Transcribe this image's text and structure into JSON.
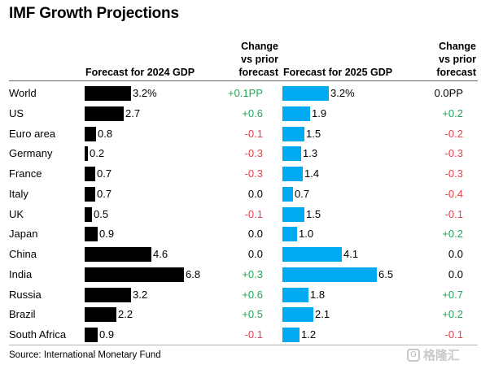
{
  "title": "IMF Growth Projections",
  "headers": {
    "forecast_2024": "Forecast for 2024 GDP",
    "change_2024": [
      "Change",
      "vs prior",
      "forecast"
    ],
    "forecast_2025": "Forecast for 2025 GDP",
    "change_2025": [
      "Change",
      "vs prior",
      "forecast"
    ]
  },
  "source": "Source: International Monetary Fund",
  "watermark": {
    "logo_text": "G",
    "text": "格隆汇"
  },
  "colors": {
    "bar_2024": "#000000",
    "bar_2025": "#00aaf0",
    "positive": "#1fa855",
    "negative": "#e8414a",
    "neutral": "#000000"
  },
  "chart_data": {
    "type": "bar",
    "orientation": "horizontal",
    "categories": [
      "World",
      "US",
      "Euro area",
      "Germany",
      "France",
      "Italy",
      "UK",
      "Japan",
      "China",
      "India",
      "Russia",
      "Brazil",
      "South Africa"
    ],
    "series": [
      {
        "name": "Forecast for 2024 GDP",
        "values": [
          3.2,
          2.7,
          0.8,
          0.2,
          0.7,
          0.7,
          0.5,
          0.9,
          4.6,
          6.8,
          3.2,
          2.2,
          0.9
        ],
        "labels": [
          "3.2%",
          "2.7",
          "0.8",
          "0.2",
          "0.7",
          "0.7",
          "0.5",
          "0.9",
          "4.6",
          "6.8",
          "3.2",
          "2.2",
          "0.9"
        ]
      },
      {
        "name": "Forecast for 2025 GDP",
        "values": [
          3.2,
          1.9,
          1.5,
          1.3,
          1.4,
          0.7,
          1.5,
          1.0,
          4.1,
          6.5,
          1.8,
          2.1,
          1.2
        ],
        "labels": [
          "3.2%",
          "1.9",
          "1.5",
          "1.3",
          "1.4",
          "0.7",
          "1.5",
          "1.0",
          "4.1",
          "6.5",
          "1.8",
          "2.1",
          "1.2"
        ]
      }
    ],
    "change_2024": {
      "values": [
        0.1,
        0.6,
        -0.1,
        -0.3,
        -0.3,
        0.0,
        -0.1,
        0.0,
        0.0,
        0.3,
        0.6,
        0.5,
        -0.1
      ],
      "labels": [
        "+0.1PP",
        "+0.6",
        "-0.1",
        "-0.3",
        "-0.3",
        "0.0",
        "-0.1",
        "0.0",
        "0.0",
        "+0.3",
        "+0.6",
        "+0.5",
        "-0.1"
      ]
    },
    "change_2025": {
      "values": [
        0.0,
        0.2,
        -0.2,
        -0.3,
        -0.3,
        -0.4,
        -0.1,
        0.2,
        0.0,
        0.0,
        0.7,
        0.2,
        -0.1
      ],
      "labels": [
        "0.0PP",
        "+0.2",
        "-0.2",
        "-0.3",
        "-0.3",
        "-0.4",
        "-0.1",
        "+0.2",
        "0.0",
        "0.0",
        "+0.7",
        "+0.2",
        "-0.1"
      ]
    }
  }
}
